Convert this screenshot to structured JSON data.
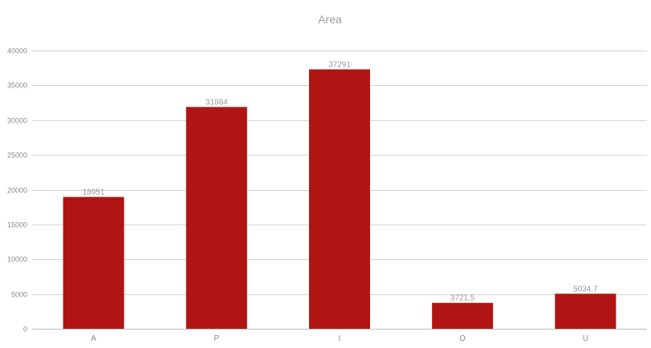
{
  "chart_data": {
    "type": "bar",
    "title": "Area",
    "xlabel": "",
    "ylabel": "",
    "categories": [
      "A",
      "P",
      "I",
      "O",
      "U"
    ],
    "values": [
      18951,
      31884,
      37291,
      3721.5,
      5034.7
    ],
    "data_labels": [
      "18951",
      "31884",
      "37291",
      "3721.5",
      "5034.7"
    ],
    "ylim": [
      0,
      40000
    ],
    "yticks": [
      0,
      5000,
      10000,
      15000,
      20000,
      25000,
      30000,
      35000,
      40000
    ],
    "ytick_labels": [
      "0",
      "5000",
      "10000",
      "15000",
      "20000",
      "25000",
      "30000",
      "35000",
      "40000"
    ],
    "grid": true,
    "legend": "none",
    "bar_color": "#b01513"
  }
}
